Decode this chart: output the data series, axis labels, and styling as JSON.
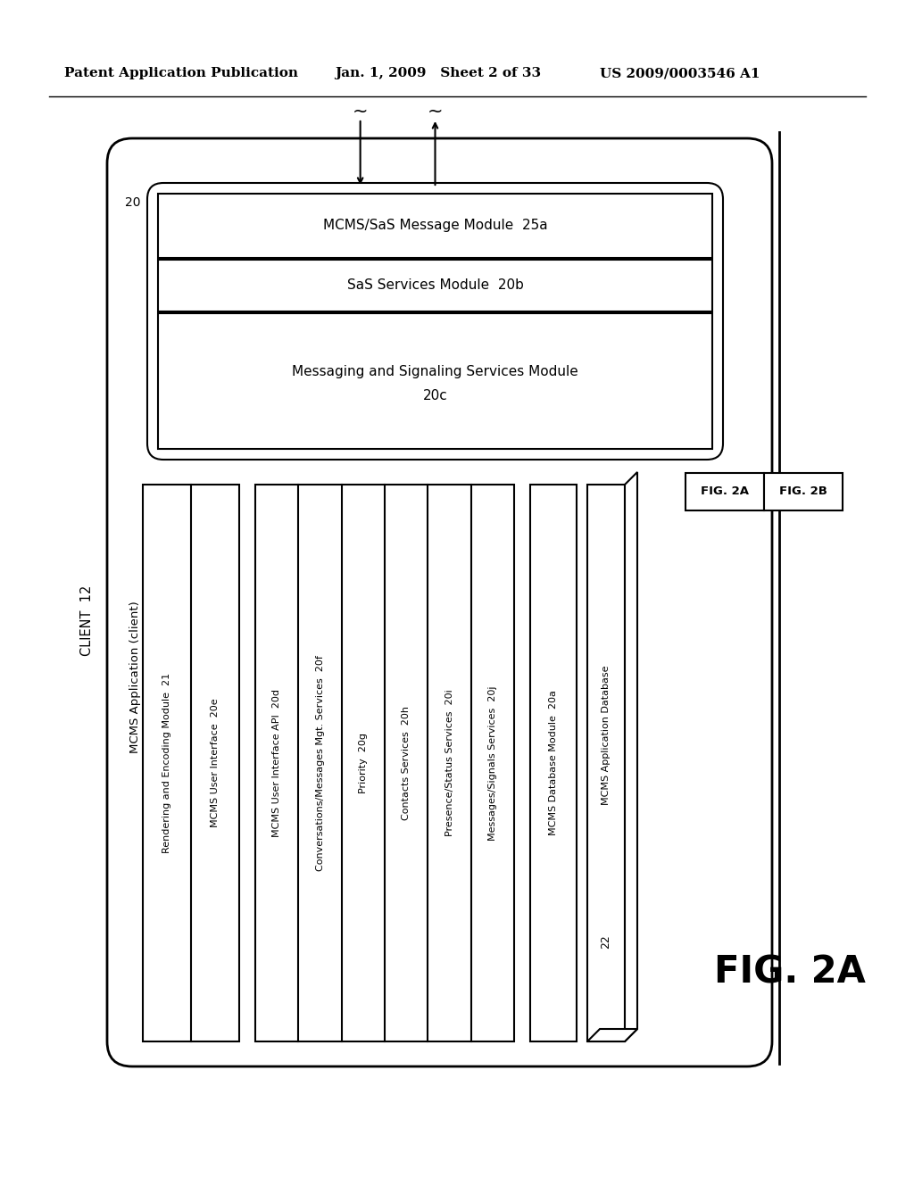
{
  "header_left": "Patent Application Publication",
  "header_mid": "Jan. 1, 2009   Sheet 2 of 33",
  "header_right": "US 2009/0003546 A1",
  "background_color": "#ffffff",
  "line_color": "#000000",
  "label_client12": "CLIENT  12",
  "label_20": "20",
  "label_mcms_app": "MCMS Application (client)",
  "box1_text": "MCMS/SaS Message Module  25a",
  "box2_text": "SaS Services Module  20b",
  "box3_line1": "Messaging and Signaling Services Module",
  "box3_line2": "20c",
  "g1_labels": [
    "Rendering and Encoding Module  21",
    "MCMS User Interface  20e"
  ],
  "g2_labels": [
    "MCMS User Interface API  20d",
    "Conversations/Messages Mgt. Services  20f",
    "Priority  20g",
    "Contacts Services  20h",
    "Presence/Status Services  20i",
    "Messages/Signals Services  20j"
  ],
  "g3_label": "MCMS Database Module  20a",
  "db_label1": "MCMS Application Database",
  "db_label2": "22",
  "fig_label": "FIG. 2A",
  "fig2a_text": "FIG. 2A",
  "fig2b_text": "FIG. 2B"
}
